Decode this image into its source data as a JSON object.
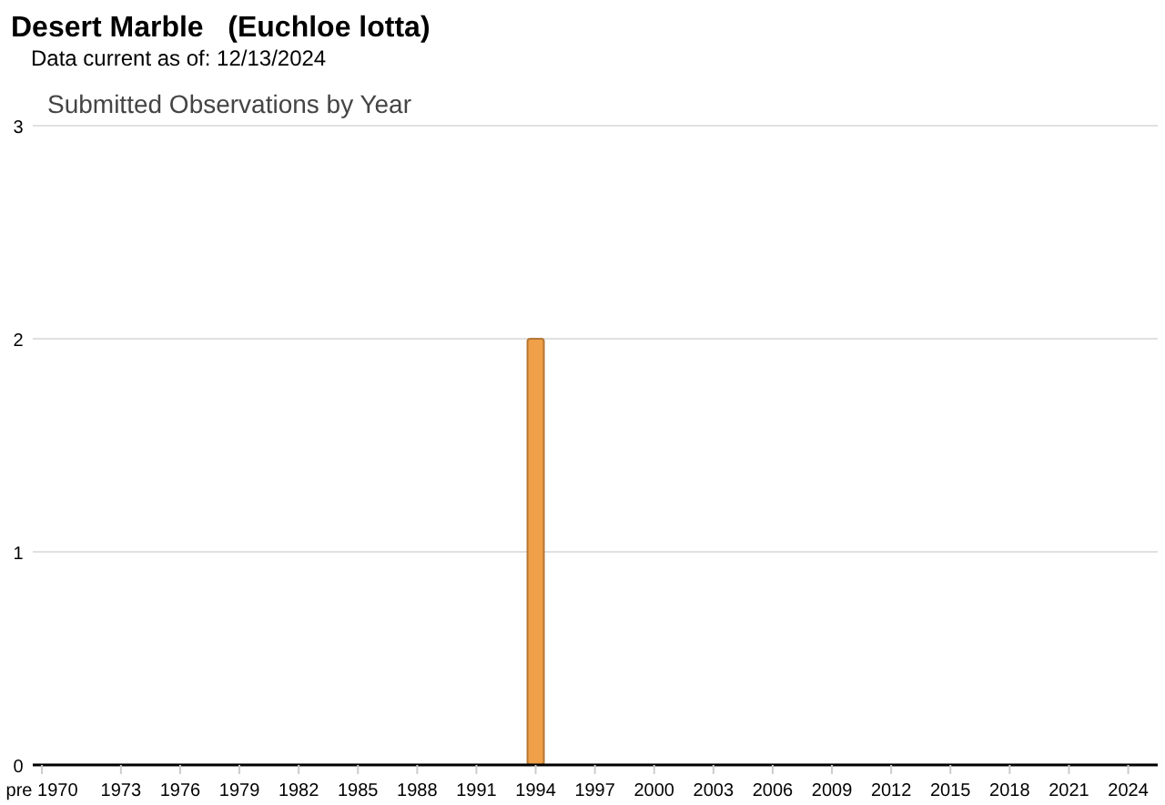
{
  "chart_data": {
    "type": "bar",
    "title": "Desert Marble   (Euchloe lotta)",
    "subtitle": "Data current as of: 12/13/2024",
    "annotations": [
      "Submitted Observations by Year"
    ],
    "categories": [
      "pre 1970",
      null,
      null,
      null,
      "1973",
      null,
      null,
      "1976",
      null,
      null,
      "1979",
      null,
      null,
      "1982",
      null,
      null,
      "1985",
      null,
      null,
      "1988",
      null,
      null,
      "1991",
      null,
      null,
      "1994",
      null,
      null,
      "1997",
      null,
      null,
      "2000",
      null,
      null,
      "2003",
      null,
      null,
      "2006",
      null,
      null,
      "2009",
      null,
      null,
      "2012",
      null,
      null,
      "2015",
      null,
      null,
      "2018",
      null,
      null,
      "2021",
      null,
      null,
      "2024"
    ],
    "values": [
      0,
      0,
      0,
      0,
      0,
      0,
      0,
      0,
      0,
      0,
      0,
      0,
      0,
      0,
      0,
      0,
      0,
      0,
      0,
      0,
      0,
      0,
      0,
      0,
      0,
      2,
      0,
      0,
      0,
      0,
      0,
      0,
      0,
      0,
      0,
      0,
      0,
      0,
      0,
      0,
      0,
      0,
      0,
      0,
      0,
      0,
      0,
      0,
      0,
      0,
      0,
      0,
      0,
      0,
      0,
      0
    ],
    "color": "#f0a048",
    "ylim": [
      0,
      3
    ],
    "yticks": [
      0,
      1,
      2,
      3
    ],
    "grid": "y"
  }
}
